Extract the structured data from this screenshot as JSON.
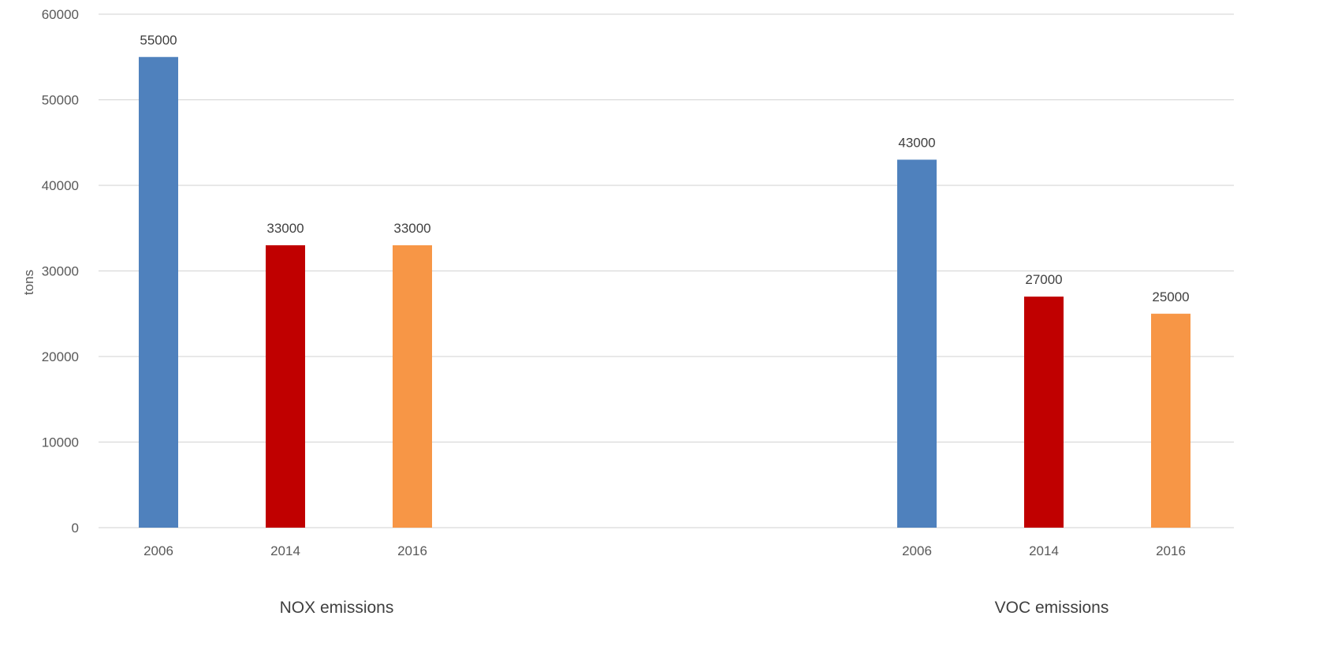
{
  "chart_data": {
    "type": "bar",
    "ylabel": "tons",
    "ylim": [
      0,
      60000
    ],
    "y_ticks": [
      0,
      10000,
      20000,
      30000,
      40000,
      50000,
      60000
    ],
    "grid": true,
    "groups": [
      {
        "label": "NOX emissions",
        "bars": [
          {
            "category": "2006",
            "value": 55000,
            "color": "#4f81bd"
          },
          {
            "category": "2014",
            "value": 33000,
            "color": "#c00000"
          },
          {
            "category": "2016",
            "value": 33000,
            "color": "#f79646"
          }
        ]
      },
      {
        "label": "VOC emissions",
        "bars": [
          {
            "category": "2006",
            "value": 43000,
            "color": "#4f81bd"
          },
          {
            "category": "2014",
            "value": 27000,
            "color": "#c00000"
          },
          {
            "category": "2016",
            "value": 25000,
            "color": "#f79646"
          }
        ]
      }
    ]
  }
}
